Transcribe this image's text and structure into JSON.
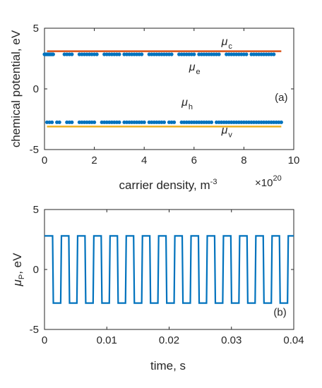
{
  "chart_data": [
    {
      "panel": "(a)",
      "type": "scatter",
      "xlabel_base": "carrier density, m",
      "xlabel_exp": "-3",
      "ylabel": "chemical potential, eV",
      "x_multiplier_base": "×10",
      "x_multiplier_exp": "20",
      "xlim": [
        0,
        10
      ],
      "ylim": [
        -5,
        5
      ],
      "xticks": [
        0,
        2,
        4,
        6,
        8,
        10
      ],
      "yticks": [
        -5,
        0,
        5
      ],
      "grid": false,
      "colors": {
        "mu_c": "#d95319",
        "mu_v": "#edb120",
        "points": "#0072bd"
      },
      "lines": [
        {
          "name": "μc",
          "sub": "c",
          "y": 3.1,
          "x": [
            0.1,
            9.5
          ],
          "color": "#d95319",
          "label_at": [
            7.1,
            3.6
          ]
        },
        {
          "name": "μv",
          "sub": "v",
          "y": -3.1,
          "x": [
            0.1,
            9.5
          ],
          "color": "#edb120",
          "label_at": [
            7.1,
            -3.7
          ]
        }
      ],
      "series": [
        {
          "name": "μe",
          "sub": "e",
          "label_at": [
            5.8,
            1.5
          ],
          "y": 2.85,
          "x": [
            0.0,
            0.03,
            0.06,
            0.09,
            0.12,
            0.15,
            0.18,
            0.2,
            0.23,
            0.26,
            0.29,
            0.32,
            0.35,
            0.8,
            0.9,
            1.0,
            1.1,
            1.4,
            1.5,
            1.6,
            1.7,
            1.8,
            1.9,
            2.0,
            2.1,
            2.4,
            2.5,
            2.6,
            2.7,
            2.8,
            2.9,
            3.0,
            3.2,
            3.3,
            3.4,
            3.5,
            3.6,
            3.7,
            3.8,
            3.9,
            4.2,
            4.3,
            4.4,
            4.5,
            4.6,
            4.7,
            4.8,
            4.9,
            5.0,
            5.1,
            5.4,
            5.5,
            5.6,
            5.7,
            5.8,
            5.9,
            6.0,
            6.2,
            6.3,
            6.4,
            6.5,
            6.6,
            6.7,
            6.8,
            6.9,
            7.0,
            7.3,
            7.4,
            7.5,
            7.6,
            7.7,
            7.8,
            7.9,
            8.0,
            8.1,
            8.3,
            8.4,
            8.5,
            8.6,
            8.7,
            8.8,
            8.9,
            9.0,
            9.1,
            9.2
          ]
        },
        {
          "name": "μh",
          "sub": "h",
          "label_at": [
            5.5,
            -1.4
          ],
          "y": -2.75,
          "x": [
            0.1,
            0.2,
            0.3,
            0.5,
            0.6,
            0.9,
            1.0,
            1.1,
            1.4,
            1.5,
            1.6,
            1.7,
            1.8,
            1.9,
            2.0,
            2.3,
            2.4,
            2.5,
            2.6,
            2.7,
            2.8,
            2.9,
            3.0,
            3.2,
            3.3,
            3.4,
            3.5,
            3.6,
            3.7,
            3.8,
            3.9,
            4.0,
            4.2,
            4.3,
            4.4,
            4.5,
            4.6,
            4.7,
            4.8,
            5.0,
            5.1,
            5.2,
            5.5,
            5.6,
            5.7,
            5.8,
            5.9,
            6.0,
            6.1,
            6.2,
            6.3,
            6.4,
            6.5,
            6.6,
            6.7,
            6.9,
            7.0,
            7.1,
            7.2,
            7.3,
            7.4,
            7.5,
            7.6,
            7.7,
            7.8,
            7.9,
            8.0,
            8.1,
            8.2,
            8.3,
            8.4,
            8.5,
            8.6,
            8.7,
            8.8,
            8.9,
            9.0,
            9.1,
            9.2,
            9.3,
            9.4,
            9.5
          ]
        }
      ],
      "annotations": [
        {
          "label": "(a)",
          "at": [
            9.5,
            -1.0
          ]
        }
      ]
    },
    {
      "panel": "(b)",
      "type": "line",
      "xlabel": "time, s",
      "ylabel_base": "μ",
      "ylabel_sub": "P",
      "ylabel_rest": ", eV",
      "xlim": [
        0,
        0.04
      ],
      "ylim": [
        -5,
        5
      ],
      "xticks": [
        0,
        0.01,
        0.02,
        0.03,
        0.04
      ],
      "xtick_labels": [
        "0",
        "0.01",
        "0.02",
        "0.03",
        "0.04"
      ],
      "yticks": [
        -5,
        0,
        5
      ],
      "grid": false,
      "series": [
        {
          "name": "μP",
          "color": "#0072bd",
          "waveform": "square",
          "high": 2.8,
          "low": -2.8,
          "start_time": 0,
          "period": 0.0026,
          "first_phase": "high",
          "first_fall": 0.0013,
          "end_time": 0.04
        }
      ],
      "annotations": [
        {
          "label": "(b)",
          "at": [
            0.0378,
            -3.85
          ]
        }
      ]
    }
  ]
}
